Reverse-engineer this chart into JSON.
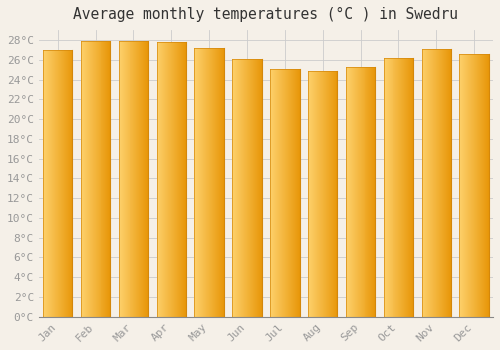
{
  "title": "Average monthly temperatures (°C ) in Swedru",
  "months": [
    "Jan",
    "Feb",
    "Mar",
    "Apr",
    "May",
    "Jun",
    "Jul",
    "Aug",
    "Sep",
    "Oct",
    "Nov",
    "Dec"
  ],
  "values": [
    27.0,
    27.9,
    27.9,
    27.8,
    27.2,
    26.1,
    25.1,
    24.9,
    25.3,
    26.2,
    27.1,
    26.6
  ],
  "bar_color_main": "#FBAA18",
  "bar_color_left": "#FDD06A",
  "bar_color_right": "#E8950A",
  "bar_edge_color": "#D4870A",
  "background_color": "#F5F0E8",
  "plot_bg_color": "#F5F0E8",
  "grid_color": "#CCCCCC",
  "ylim": [
    0,
    29
  ],
  "ytick_step": 2,
  "title_fontsize": 10.5,
  "tick_fontsize": 8,
  "title_font": "monospace",
  "tick_font": "monospace",
  "tick_color": "#999999"
}
